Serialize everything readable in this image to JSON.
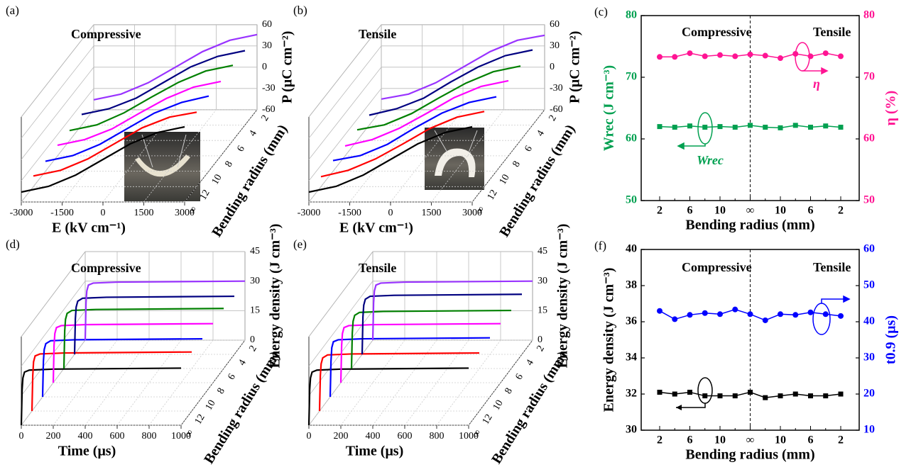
{
  "chart_data": [
    {
      "type": "waterfall",
      "label": "(a)",
      "annotation": "Compressive",
      "x_label": "E (kV cm⁻¹)",
      "y_label": "P (μC cm⁻²)",
      "depth_label": "Bending radius (mm)",
      "x": [
        -3000,
        -2000,
        -1000,
        0,
        1000,
        2000,
        3000
      ],
      "xlim": [
        -3000,
        3000
      ],
      "xticks": [
        -3000,
        -1500,
        0,
        1500,
        3000
      ],
      "ylim": [
        -60,
        60
      ],
      "yticks": [
        -60,
        -30,
        0,
        30,
        60
      ],
      "depth_categories": [
        "∞",
        "12",
        "10",
        "8",
        "6",
        "4",
        "2"
      ],
      "series": [
        {
          "color": "#000000",
          "values": [
            -46,
            -38,
            -22,
            0,
            22,
            38,
            46
          ]
        },
        {
          "color": "#ff0000",
          "values": [
            -45,
            -37,
            -21,
            1,
            23,
            38,
            45
          ]
        },
        {
          "color": "#0000ff",
          "values": [
            -46,
            -38,
            -22,
            0,
            22,
            37,
            46
          ]
        },
        {
          "color": "#ff00ff",
          "values": [
            -45,
            -37,
            -22,
            0,
            21,
            37,
            45
          ]
        },
        {
          "color": "#008000",
          "values": [
            -46,
            -38,
            -21,
            1,
            22,
            38,
            46
          ]
        },
        {
          "color": "#000080",
          "values": [
            -45,
            -37,
            -22,
            0,
            22,
            37,
            45
          ]
        },
        {
          "color": "#9933ff",
          "values": [
            -46,
            -38,
            -22,
            0,
            22,
            38,
            46
          ]
        }
      ]
    },
    {
      "type": "waterfall",
      "label": "(b)",
      "annotation": "Tensile",
      "x_label": "E (kV cm⁻¹)",
      "y_label": "P (μC cm⁻²)",
      "depth_label": "Bending radius (mm)",
      "x": [
        -3000,
        -2000,
        -1000,
        0,
        1000,
        2000,
        3000
      ],
      "xlim": [
        -3000,
        3000
      ],
      "xticks": [
        -3000,
        -1500,
        0,
        1500,
        3000
      ],
      "ylim": [
        -60,
        60
      ],
      "yticks": [
        -60,
        -30,
        0,
        30,
        60
      ],
      "depth_categories": [
        "∞",
        "12",
        "10",
        "8",
        "6",
        "4",
        "2"
      ],
      "series": [
        {
          "color": "#000000",
          "values": [
            -46,
            -38,
            -22,
            0,
            22,
            38,
            46
          ]
        },
        {
          "color": "#ff0000",
          "values": [
            -46,
            -37,
            -21,
            0,
            22,
            38,
            46
          ]
        },
        {
          "color": "#0000ff",
          "values": [
            -45,
            -38,
            -22,
            1,
            22,
            37,
            45
          ]
        },
        {
          "color": "#ff00ff",
          "values": [
            -46,
            -37,
            -21,
            0,
            22,
            38,
            46
          ]
        },
        {
          "color": "#008000",
          "values": [
            -45,
            -38,
            -22,
            0,
            21,
            37,
            45
          ]
        },
        {
          "color": "#000080",
          "values": [
            -46,
            -37,
            -22,
            1,
            22,
            38,
            46
          ]
        },
        {
          "color": "#9933ff",
          "values": [
            -45,
            -38,
            -22,
            0,
            22,
            38,
            45
          ]
        }
      ]
    },
    {
      "type": "line",
      "label": "(c)",
      "annotations": [
        "Compressive",
        "Tensile"
      ],
      "x_label": "Bending radius (mm)",
      "y_label": "Wrec (J cm⁻³)",
      "y2_label": "η (%)",
      "categories": [
        "2",
        null,
        "6",
        null,
        "10",
        null,
        "∞",
        null,
        "10",
        null,
        "6",
        null,
        "2"
      ],
      "ylim": [
        50,
        80
      ],
      "yticks": [
        50,
        60,
        70,
        80
      ],
      "y_color": "#00a050",
      "y2lim": [
        50,
        80
      ],
      "y2ticks": [
        50,
        60,
        70,
        80
      ],
      "y2_color": "#ff1493",
      "series": [
        {
          "name": "Wrec",
          "color": "#00a050",
          "marker": "square",
          "values": [
            62,
            61.9,
            62.1,
            61.9,
            62,
            61.9,
            62.2,
            61.9,
            61.8,
            62.2,
            61.9,
            62.1,
            61.9
          ]
        },
        {
          "name": "η",
          "color": "#ff1493",
          "marker": "circle",
          "axis": "y2",
          "values": [
            73.3,
            73.3,
            73.9,
            73.4,
            73.6,
            73.4,
            73.7,
            73.5,
            73.1,
            73.8,
            73.4,
            73.9,
            73.4
          ]
        }
      ]
    },
    {
      "type": "waterfall",
      "label": "(d)",
      "annotation": "Compressive",
      "x_label": "Time (μs)",
      "y_label": "Energy density (J cm⁻³)",
      "depth_label": "Bending radius (mm)",
      "x": [
        0,
        5,
        10,
        20,
        50,
        200,
        1000
      ],
      "xlim": [
        0,
        1000
      ],
      "xticks": [
        0,
        200,
        400,
        600,
        800,
        1000
      ],
      "ylim": [
        0,
        45
      ],
      "yticks": [
        0,
        15,
        30,
        45
      ],
      "depth_categories": [
        "∞",
        "12",
        "10",
        "8",
        "6",
        "4",
        "2"
      ],
      "series": [
        {
          "color": "#000000",
          "values": [
            0,
            18,
            24,
            27,
            28,
            28.5,
            29
          ]
        },
        {
          "color": "#ff0000",
          "values": [
            0,
            18,
            25,
            28,
            29,
            29.5,
            30
          ]
        },
        {
          "color": "#0000ff",
          "values": [
            0,
            18,
            24,
            27,
            28.5,
            29,
            29.5
          ]
        },
        {
          "color": "#ff00ff",
          "values": [
            0,
            19,
            25,
            28,
            29,
            29.5,
            30
          ]
        },
        {
          "color": "#008000",
          "values": [
            0,
            19,
            25,
            28,
            29.5,
            30,
            30.5
          ]
        },
        {
          "color": "#000080",
          "values": [
            0,
            18,
            24,
            27,
            28.5,
            29,
            29.5
          ]
        },
        {
          "color": "#9933ff",
          "values": [
            0,
            19,
            25,
            28,
            29,
            29.5,
            30
          ]
        }
      ]
    },
    {
      "type": "waterfall",
      "label": "(e)",
      "annotation": "Tensile",
      "x_label": "Time (μs)",
      "y_label": "Energy density (J cm⁻³)",
      "depth_label": "Bending radius (mm)",
      "x": [
        0,
        5,
        10,
        20,
        50,
        200,
        1000
      ],
      "xlim": [
        0,
        1000
      ],
      "xticks": [
        0,
        200,
        400,
        600,
        800,
        1000
      ],
      "ylim": [
        0,
        45
      ],
      "yticks": [
        0,
        15,
        30,
        45
      ],
      "depth_categories": [
        "∞",
        "12",
        "10",
        "8",
        "6",
        "4",
        "2"
      ],
      "series": [
        {
          "color": "#000000",
          "values": [
            0,
            18,
            24,
            27,
            28,
            28.5,
            29
          ]
        },
        {
          "color": "#ff0000",
          "values": [
            0,
            18,
            24,
            27,
            28.5,
            29,
            29.5
          ]
        },
        {
          "color": "#0000ff",
          "values": [
            0,
            18,
            25,
            28,
            29,
            29.5,
            30
          ]
        },
        {
          "color": "#ff00ff",
          "values": [
            0,
            19,
            25,
            28,
            29,
            29.5,
            30
          ]
        },
        {
          "color": "#008000",
          "values": [
            0,
            18,
            24,
            27,
            28.5,
            29,
            29.5
          ]
        },
        {
          "color": "#000080",
          "values": [
            0,
            19,
            25,
            28,
            29.5,
            30,
            30.5
          ]
        },
        {
          "color": "#9933ff",
          "values": [
            0,
            19,
            25,
            28,
            29,
            29.5,
            30
          ]
        }
      ]
    },
    {
      "type": "line",
      "label": "(f)",
      "annotations": [
        "Compressive",
        "Tensile"
      ],
      "x_label": "Bending radius (mm)",
      "y_label": "Energy density (J cm⁻³)",
      "y2_label": "t0.9 (μs)",
      "categories": [
        "2",
        null,
        "6",
        null,
        "10",
        null,
        "∞",
        null,
        "10",
        null,
        "6",
        null,
        "2"
      ],
      "ylim": [
        30,
        40
      ],
      "yticks": [
        30,
        32,
        34,
        36,
        38,
        40
      ],
      "y_color": "#000000",
      "y2lim": [
        10,
        60
      ],
      "y2ticks": [
        10,
        20,
        30,
        40,
        50,
        60
      ],
      "y2_color": "#0000ff",
      "series": [
        {
          "color": "#000000",
          "marker": "square",
          "values": [
            32.1,
            32,
            32.1,
            31.9,
            31.9,
            31.9,
            32.1,
            31.8,
            31.9,
            32,
            31.9,
            31.9,
            32
          ]
        },
        {
          "color": "#0000ff",
          "marker": "circle",
          "axis": "y2",
          "values": [
            43,
            40.7,
            41.9,
            42.4,
            42.1,
            43.4,
            42.1,
            40.4,
            42.1,
            41.9,
            42.6,
            42.1,
            41.6
          ]
        }
      ]
    }
  ]
}
